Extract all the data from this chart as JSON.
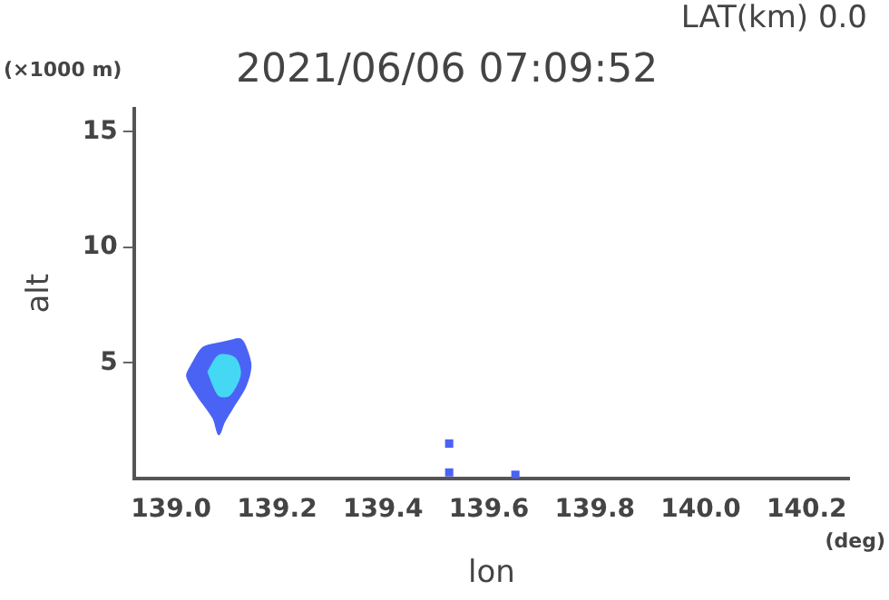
{
  "chart_data": {
    "type": "area",
    "title": "2021/06/06 07:09:52",
    "subtitle": "LAT(km) 0.0",
    "xlabel": "lon",
    "ylabel": "alt",
    "annotations": [
      "(×1000 m)",
      "(deg)"
    ],
    "xlim": [
      138.93,
      140.28
    ],
    "ylim": [
      0,
      16
    ],
    "xticks": [
      {
        "value": 139,
        "label": "139.0"
      },
      {
        "value": 139.2,
        "label": "139.2"
      },
      {
        "value": 139.4,
        "label": "139.4"
      },
      {
        "value": 139.6,
        "label": "139.6"
      },
      {
        "value": 139.8,
        "label": "139.8"
      },
      {
        "value": 140,
        "label": "140.0"
      },
      {
        "value": 140.2,
        "label": "140.2"
      }
    ],
    "yticks": [
      5,
      10,
      15
    ],
    "grid": false,
    "legend": false,
    "series": [
      {
        "type": "area",
        "color": "#4b63f5",
        "x": [
          139.04,
          139.06,
          139.095,
          139.11,
          139.13,
          139.14,
          139.15,
          139.14,
          139.12,
          139.1,
          139.09,
          139.08,
          139.05,
          139.03
        ],
        "values": [
          4.95,
          5.64,
          5.86,
          5.94,
          6.02,
          5.71,
          4.87,
          3.96,
          3.2,
          2.44,
          1.9,
          2.59,
          3.58,
          4.42
        ]
      },
      {
        "type": "area",
        "color": "#44d8f5",
        "x": [
          139.07,
          139.09,
          139.12,
          139.13,
          139.11,
          139.09
        ],
        "values": [
          4.6,
          5.3,
          5.2,
          4.5,
          3.6,
          3.6
        ]
      },
      {
        "type": "scatter",
        "color": "#4b63f5",
        "x": [
          139.525,
          139.525,
          139.65
        ],
        "values": [
          1.5,
          0.25,
          0.15
        ]
      }
    ]
  }
}
